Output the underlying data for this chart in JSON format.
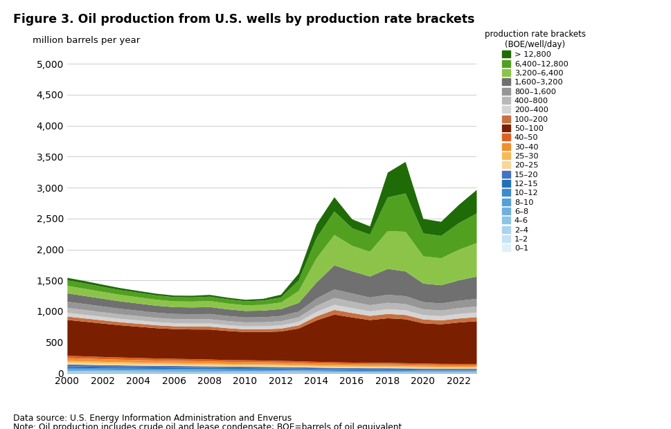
{
  "title": "Figure 3. Oil production from U.S. wells by production rate brackets",
  "ylabel": "million barrels per year",
  "legend_title": "production rate brackets\n(BOE/well/day)",
  "data_source": "Data source: U.S. Energy Information Administration and Enverus",
  "note": "Note: Oil production includes crude oil and lease condensate; BOE=barrels of oil equivalent",
  "years": [
    2000,
    2001,
    2002,
    2003,
    2004,
    2005,
    2006,
    2007,
    2008,
    2009,
    2010,
    2011,
    2012,
    2013,
    2014,
    2015,
    2016,
    2017,
    2018,
    2019,
    2020,
    2021,
    2022,
    2023
  ],
  "ylim": [
    0,
    5200
  ],
  "yticks": [
    0,
    500,
    1000,
    1500,
    2000,
    2500,
    3000,
    3500,
    4000,
    4500,
    5000
  ],
  "categories": [
    "0–1",
    "1–2",
    "2–4",
    "4–6",
    "6–8",
    "8–10",
    "10–12",
    "12–15",
    "15–20",
    "20–25",
    "25–30",
    "30–40",
    "40–50",
    "50–100",
    "100–200",
    "200–400",
    "400–800",
    "800–1,600",
    "1,600–3,200",
    "3,200–6,400",
    "6,400–12,800",
    "> 12,800"
  ],
  "colors": [
    "#dff0fa",
    "#c5e3f5",
    "#a9d3ee",
    "#8dc3e8",
    "#6fb0e0",
    "#559fd8",
    "#3b8cce",
    "#2070b8",
    "#4472c4",
    "#f7d89a",
    "#f5bb5a",
    "#f09030",
    "#e06020",
    "#7a2000",
    "#c87040",
    "#d4d4d4",
    "#b8b8b8",
    "#969696",
    "#707070",
    "#8cc44a",
    "#52a020",
    "#1e6b08"
  ],
  "series": {
    "0–1": [
      5,
      5,
      5,
      5,
      4,
      4,
      4,
      4,
      4,
      4,
      4,
      4,
      4,
      4,
      3,
      3,
      3,
      3,
      3,
      3,
      3,
      3,
      3,
      3
    ],
    "1–2": [
      8,
      8,
      7,
      7,
      7,
      7,
      7,
      7,
      6,
      6,
      6,
      6,
      6,
      5,
      5,
      5,
      5,
      5,
      5,
      5,
      4,
      4,
      4,
      4
    ],
    "2–4": [
      12,
      12,
      11,
      11,
      11,
      10,
      10,
      10,
      10,
      9,
      9,
      9,
      9,
      8,
      8,
      7,
      7,
      7,
      7,
      7,
      6,
      6,
      6,
      6
    ],
    "4–6": [
      15,
      14,
      14,
      13,
      13,
      13,
      12,
      12,
      12,
      11,
      11,
      11,
      10,
      10,
      9,
      9,
      9,
      8,
      8,
      8,
      8,
      7,
      7,
      7
    ],
    "6–8": [
      15,
      15,
      14,
      14,
      13,
      13,
      13,
      12,
      12,
      12,
      11,
      11,
      11,
      10,
      10,
      9,
      9,
      9,
      9,
      8,
      8,
      8,
      8,
      8
    ],
    "8–10": [
      18,
      17,
      17,
      16,
      16,
      15,
      15,
      15,
      14,
      14,
      14,
      13,
      13,
      13,
      12,
      12,
      11,
      11,
      11,
      11,
      10,
      10,
      10,
      10
    ],
    "10–12": [
      18,
      18,
      17,
      17,
      16,
      16,
      15,
      15,
      15,
      14,
      14,
      14,
      13,
      13,
      12,
      12,
      11,
      11,
      11,
      11,
      10,
      10,
      10,
      10
    ],
    "12–15": [
      25,
      24,
      23,
      22,
      22,
      21,
      21,
      20,
      20,
      19,
      19,
      18,
      18,
      17,
      17,
      16,
      15,
      15,
      15,
      14,
      14,
      14,
      13,
      13
    ],
    "15–20": [
      30,
      29,
      28,
      27,
      26,
      25,
      25,
      24,
      23,
      23,
      22,
      22,
      21,
      21,
      20,
      19,
      19,
      18,
      18,
      17,
      17,
      16,
      16,
      16
    ],
    "20–25": [
      30,
      29,
      28,
      27,
      26,
      25,
      24,
      24,
      23,
      22,
      22,
      21,
      21,
      20,
      19,
      19,
      18,
      18,
      18,
      17,
      17,
      16,
      16,
      16
    ],
    "25–30": [
      28,
      27,
      26,
      26,
      25,
      24,
      24,
      23,
      23,
      22,
      22,
      21,
      21,
      20,
      19,
      19,
      18,
      18,
      18,
      17,
      17,
      16,
      16,
      16
    ],
    "30–40": [
      45,
      43,
      42,
      40,
      39,
      38,
      37,
      36,
      35,
      34,
      33,
      33,
      32,
      31,
      30,
      29,
      28,
      28,
      27,
      27,
      26,
      25,
      25,
      25
    ],
    "40–50": [
      38,
      37,
      36,
      35,
      34,
      33,
      32,
      31,
      30,
      29,
      29,
      28,
      27,
      27,
      26,
      25,
      25,
      24,
      24,
      23,
      23,
      22,
      22,
      22
    ],
    "50–100": [
      580,
      560,
      540,
      520,
      505,
      490,
      480,
      480,
      485,
      470,
      455,
      460,
      475,
      530,
      670,
      770,
      730,
      690,
      720,
      710,
      650,
      640,
      670,
      690
    ],
    "100–200": [
      55,
      53,
      52,
      50,
      49,
      47,
      46,
      46,
      47,
      45,
      44,
      45,
      46,
      51,
      65,
      75,
      71,
      67,
      70,
      69,
      63,
      62,
      65,
      67
    ],
    "200–400": [
      60,
      58,
      56,
      54,
      53,
      51,
      50,
      50,
      51,
      49,
      48,
      49,
      51,
      56,
      72,
      83,
      79,
      74,
      77,
      76,
      70,
      69,
      72,
      74
    ],
    "400–800": [
      80,
      77,
      75,
      72,
      70,
      68,
      66,
      67,
      68,
      66,
      64,
      65,
      68,
      74,
      96,
      110,
      105,
      99,
      103,
      101,
      93,
      91,
      95,
      98
    ],
    "800–1,600": [
      100,
      97,
      93,
      90,
      87,
      85,
      83,
      83,
      85,
      82,
      80,
      81,
      85,
      93,
      120,
      138,
      131,
      124,
      129,
      127,
      116,
      114,
      119,
      123
    ],
    "1,600–3,200": [
      135,
      130,
      125,
      120,
      116,
      112,
      110,
      110,
      112,
      108,
      105,
      107,
      112,
      140,
      260,
      390,
      360,
      340,
      420,
      400,
      300,
      295,
      330,
      360
    ],
    "3,200–6,400": [
      120,
      116,
      110,
      105,
      100,
      96,
      93,
      94,
      97,
      93,
      90,
      93,
      105,
      190,
      390,
      490,
      410,
      400,
      610,
      640,
      440,
      435,
      495,
      540
    ],
    "6,400–12,800": [
      90,
      87,
      82,
      77,
      73,
      70,
      68,
      68,
      71,
      68,
      66,
      69,
      82,
      175,
      330,
      380,
      285,
      275,
      545,
      620,
      370,
      362,
      430,
      480
    ],
    "> 12,800": [
      40,
      38,
      35,
      32,
      30,
      28,
      26,
      27,
      29,
      27,
      25,
      28,
      45,
      110,
      220,
      230,
      145,
      135,
      400,
      510,
      235,
      228,
      295,
      380
    ]
  }
}
